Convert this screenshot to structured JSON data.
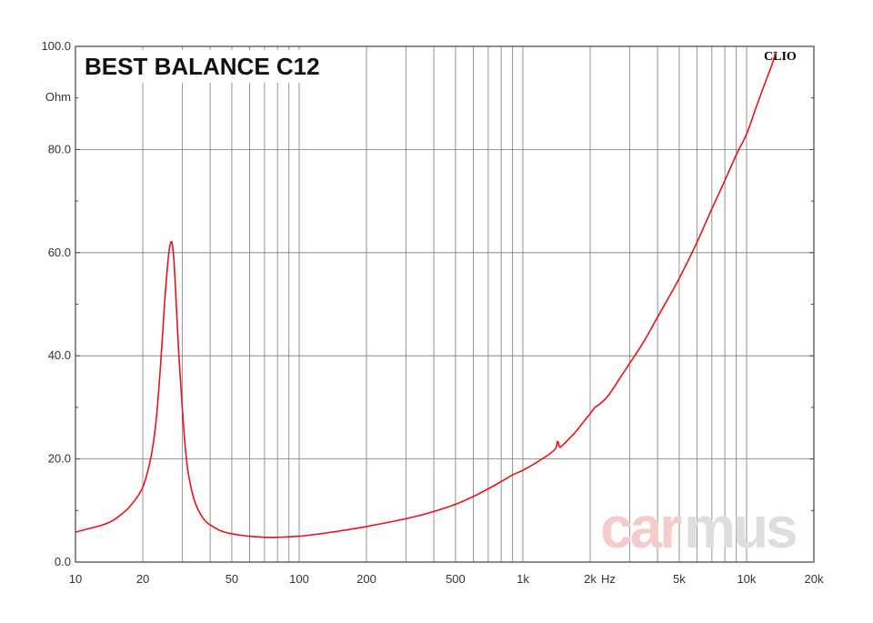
{
  "chart_data": {
    "type": "line",
    "title": "BEST BALANCE C12",
    "badge": "CLIO",
    "watermark": {
      "part1": "car",
      "part2": "mus"
    },
    "xscale": "log",
    "xlim": [
      10,
      20000
    ],
    "ylim": [
      0,
      100
    ],
    "ylabel": "Ohm",
    "xunit": "Hz",
    "grid": true,
    "x_ticks": [
      {
        "value": 10,
        "label": "10"
      },
      {
        "value": 20,
        "label": "20"
      },
      {
        "value": 50,
        "label": "50"
      },
      {
        "value": 100,
        "label": "100"
      },
      {
        "value": 200,
        "label": "200"
      },
      {
        "value": 500,
        "label": "500"
      },
      {
        "value": 1000,
        "label": "1k"
      },
      {
        "value": 2000,
        "label": "2k"
      },
      {
        "value": 5000,
        "label": "5k"
      },
      {
        "value": 10000,
        "label": "10k"
      },
      {
        "value": 20000,
        "label": "20k"
      }
    ],
    "y_ticks": [
      {
        "value": 0,
        "label": "0.0"
      },
      {
        "value": 20,
        "label": "20.0"
      },
      {
        "value": 40,
        "label": "40.0"
      },
      {
        "value": 60,
        "label": "60.0"
      },
      {
        "value": 80,
        "label": "80.0"
      },
      {
        "value": 100,
        "label": "100.0"
      }
    ],
    "series": [
      {
        "color": "#e8131a",
        "x": [
          10,
          12,
          13,
          14,
          15,
          16,
          17,
          18,
          19,
          20,
          21,
          22,
          23,
          24,
          25,
          26,
          26.5,
          27,
          27.5,
          28,
          29,
          30,
          31,
          32,
          34,
          36,
          38,
          40,
          45,
          50,
          55,
          60,
          70,
          80,
          90,
          100,
          120,
          150,
          200,
          300,
          400,
          500,
          600,
          700,
          800,
          900,
          1000,
          1100,
          1200,
          1300,
          1400,
          1430,
          1460,
          1500,
          1600,
          1700,
          1800,
          1900,
          2000,
          2100,
          2200,
          2400,
          2700,
          3000,
          3500,
          4000,
          5000,
          6000,
          7000,
          8000,
          9000,
          10000,
          11000,
          12000,
          13000,
          13500
        ],
        "y": [
          5.8,
          6.7,
          7.1,
          7.6,
          8.3,
          9.2,
          10.2,
          11.4,
          12.8,
          14.5,
          17.5,
          21.5,
          28,
          38,
          50,
          59,
          61.5,
          62,
          59,
          53,
          40,
          30,
          22,
          17,
          12,
          9.5,
          8,
          7.2,
          6,
          5.5,
          5.2,
          5.0,
          4.8,
          4.8,
          4.9,
          5.0,
          5.4,
          6.0,
          6.9,
          8.4,
          9.8,
          11.2,
          12.7,
          14.2,
          15.6,
          16.9,
          17.8,
          18.8,
          19.8,
          20.8,
          22.0,
          23.4,
          22.3,
          22.6,
          23.8,
          25.0,
          26.3,
          27.6,
          28.8,
          30.0,
          30.6,
          32.2,
          35.5,
          38.5,
          43,
          47.5,
          55,
          62,
          68.5,
          74,
          79,
          83,
          88,
          92.5,
          96.5,
          99
        ]
      }
    ]
  }
}
